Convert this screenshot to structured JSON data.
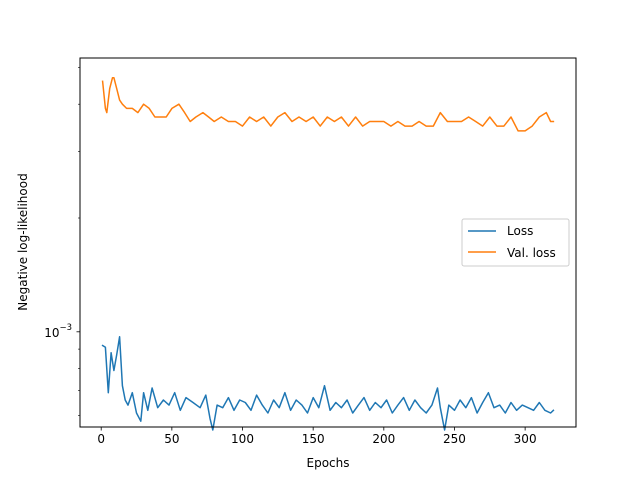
{
  "chart_data": {
    "type": "line",
    "title": "",
    "xlabel": "Epochs",
    "ylabel": "Negative log-likelihood",
    "yscale": "log",
    "xlim": [
      -15,
      336
    ],
    "ylim": [
      0.00056,
      0.0053
    ],
    "xticks": [
      0,
      50,
      100,
      150,
      200,
      250,
      300
    ],
    "xtick_labels": [
      "0",
      "50",
      "100",
      "150",
      "200",
      "250",
      "300"
    ],
    "ytick_major": [
      0.001
    ],
    "ytick_major_labels": [
      "10",
      "−3"
    ],
    "legend_position": "center-right",
    "grid": false,
    "series": [
      {
        "name": "Loss",
        "color": "#1f77b4",
        "x": [
          1,
          3,
          5,
          7,
          9,
          11,
          13,
          15,
          17,
          19,
          22,
          25,
          28,
          30,
          33,
          36,
          40,
          44,
          48,
          52,
          56,
          60,
          65,
          70,
          74,
          77,
          79,
          82,
          86,
          90,
          94,
          98,
          102,
          106,
          110,
          114,
          118,
          122,
          126,
          130,
          134,
          138,
          142,
          146,
          150,
          154,
          158,
          162,
          166,
          170,
          174,
          178,
          182,
          186,
          190,
          194,
          198,
          202,
          206,
          210,
          214,
          218,
          222,
          226,
          230,
          234,
          238,
          240,
          243,
          246,
          250,
          254,
          258,
          262,
          266,
          270,
          274,
          278,
          282,
          286,
          290,
          294,
          298,
          302,
          306,
          310,
          314,
          318,
          320
        ],
        "y": [
          0.00092,
          0.00091,
          0.00069,
          0.00088,
          0.00079,
          0.00087,
          0.00097,
          0.00072,
          0.00066,
          0.00064,
          0.00069,
          0.00061,
          0.00058,
          0.00069,
          0.00062,
          0.00071,
          0.00063,
          0.00066,
          0.00064,
          0.00069,
          0.00062,
          0.00067,
          0.00065,
          0.00063,
          0.00068,
          0.00059,
          0.00055,
          0.00064,
          0.00063,
          0.00067,
          0.00062,
          0.00066,
          0.00065,
          0.00062,
          0.00068,
          0.00064,
          0.00061,
          0.00066,
          0.00063,
          0.00069,
          0.00062,
          0.00066,
          0.00064,
          0.00061,
          0.00067,
          0.00063,
          0.00072,
          0.00062,
          0.00065,
          0.00063,
          0.00066,
          0.00061,
          0.00064,
          0.00067,
          0.00062,
          0.00065,
          0.00063,
          0.00066,
          0.00061,
          0.00064,
          0.00067,
          0.00062,
          0.00066,
          0.00063,
          0.00061,
          0.00064,
          0.00071,
          0.00063,
          0.00055,
          0.00064,
          0.00062,
          0.00066,
          0.00063,
          0.00067,
          0.00061,
          0.00065,
          0.00069,
          0.00063,
          0.00064,
          0.00061,
          0.00065,
          0.00062,
          0.00064,
          0.00063,
          0.00062,
          0.00065,
          0.00062,
          0.00061,
          0.00062
        ]
      },
      {
        "name": "Val. loss",
        "color": "#ff7f0e",
        "x": [
          1,
          3,
          4,
          6,
          8,
          9,
          11,
          13,
          15,
          18,
          22,
          26,
          30,
          34,
          38,
          42,
          46,
          50,
          55,
          59,
          63,
          67,
          72,
          76,
          80,
          85,
          90,
          95,
          100,
          105,
          110,
          115,
          120,
          125,
          130,
          135,
          140,
          145,
          150,
          155,
          160,
          165,
          170,
          175,
          180,
          185,
          190,
          195,
          200,
          205,
          210,
          215,
          220,
          225,
          230,
          235,
          240,
          245,
          250,
          255,
          260,
          265,
          270,
          275,
          280,
          285,
          290,
          295,
          300,
          305,
          310,
          315,
          318,
          320
        ],
        "y": [
          0.0046,
          0.0039,
          0.0038,
          0.0044,
          0.0047,
          0.0047,
          0.0044,
          0.0041,
          0.004,
          0.0039,
          0.0039,
          0.0038,
          0.004,
          0.0039,
          0.0037,
          0.0037,
          0.0037,
          0.0039,
          0.004,
          0.0038,
          0.0036,
          0.0037,
          0.0038,
          0.0037,
          0.0036,
          0.0037,
          0.0036,
          0.0036,
          0.0035,
          0.0037,
          0.0036,
          0.0037,
          0.0035,
          0.0037,
          0.0038,
          0.0036,
          0.0037,
          0.0036,
          0.0037,
          0.0035,
          0.0037,
          0.0036,
          0.0037,
          0.0035,
          0.0037,
          0.0035,
          0.0036,
          0.0036,
          0.0036,
          0.0035,
          0.0036,
          0.0035,
          0.0035,
          0.0036,
          0.0035,
          0.0035,
          0.0038,
          0.0036,
          0.0036,
          0.0036,
          0.0037,
          0.0036,
          0.0035,
          0.0037,
          0.0035,
          0.0035,
          0.0037,
          0.0034,
          0.0034,
          0.0035,
          0.0037,
          0.0038,
          0.0036,
          0.0036
        ]
      }
    ]
  }
}
